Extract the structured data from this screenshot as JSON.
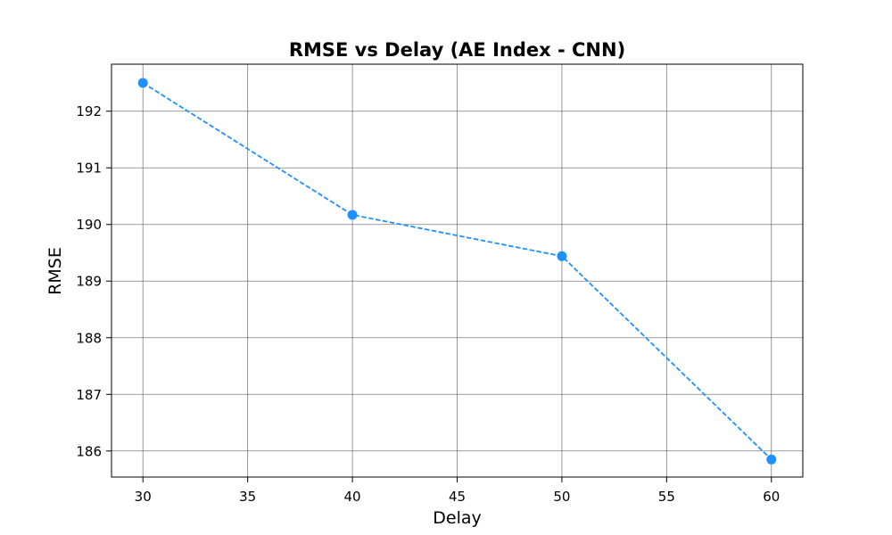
{
  "chart_data": {
    "type": "line",
    "title": "RMSE vs Delay (AE Index - CNN)",
    "xlabel": "Delay",
    "ylabel": "RMSE",
    "x": [
      30,
      40,
      50,
      60
    ],
    "series": [
      {
        "values": [
          192.5,
          190.17,
          189.44,
          185.85
        ],
        "color": "#1e90ff",
        "line_style": "dashed",
        "marker": "circle"
      }
    ],
    "xlim": [
      28.5,
      61.5
    ],
    "ylim": [
      185.54,
      192.83
    ],
    "xticks": [
      30,
      35,
      40,
      45,
      50,
      55,
      60
    ],
    "yticks": [
      186,
      187,
      188,
      189,
      190,
      191,
      192
    ],
    "grid": true,
    "legend": "none"
  }
}
